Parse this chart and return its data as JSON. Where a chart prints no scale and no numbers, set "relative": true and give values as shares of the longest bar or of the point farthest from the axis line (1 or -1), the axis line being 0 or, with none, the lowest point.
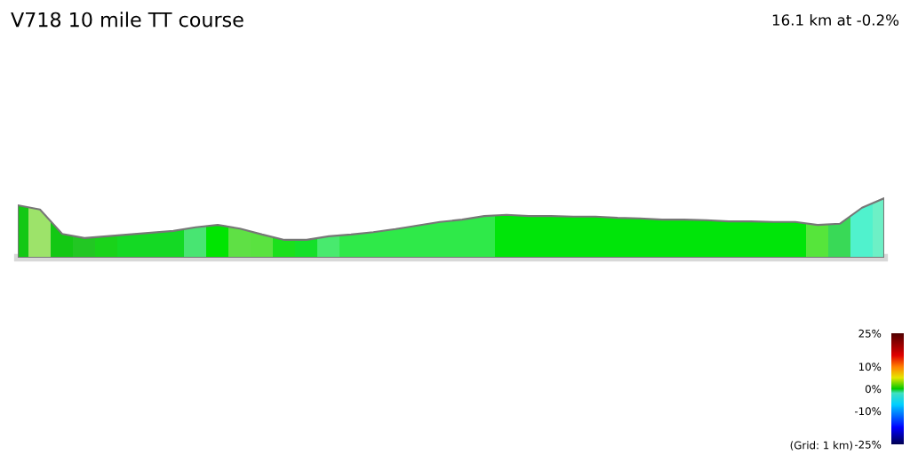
{
  "chart_data": {
    "type": "area",
    "title": "V718 10 mile TT course",
    "relative": true,
    "annotations": [
      "16.1 km at -0.2%",
      "(Grid: 1 km)"
    ],
    "categories": [
      null,
      null,
      null,
      null,
      null,
      null,
      null,
      null,
      null,
      null,
      null,
      null,
      null,
      null,
      null,
      null,
      null,
      null,
      null,
      null,
      null,
      null,
      null,
      null,
      null,
      null,
      null,
      null,
      null,
      null,
      null,
      null,
      null,
      null,
      null,
      null,
      null,
      null,
      null,
      null
    ],
    "series": [
      {
        "color": "#00e60a",
        "values": [
          0.88,
          0.81,
          0.4,
          0.33,
          0.36,
          0.39,
          0.42,
          0.45,
          0.51,
          0.55,
          0.49,
          0.39,
          0.3,
          0.3,
          0.36,
          0.39,
          0.43,
          0.48,
          0.54,
          0.6,
          0.64,
          0.7,
          0.72,
          0.7,
          0.7,
          0.69,
          0.69,
          0.67,
          0.66,
          0.64,
          0.64,
          0.63,
          0.61,
          0.61,
          0.6,
          0.6,
          0.55,
          0.57,
          0.84,
          1
        ],
        "colors": [
          "#17c417",
          "#b9e37c",
          "#17c417",
          "#29c229",
          "#1ed11e",
          "#18d82a",
          "#18d82a",
          "#18d82a",
          "#55e585",
          "#00e600",
          "#70e050",
          "#6ae24a",
          "#20e020",
          "#18e030",
          "#55ec80",
          "#38ea55",
          "#38ea55",
          "#38ea55",
          "#38ea55",
          "#38ea55",
          "#38ea55",
          "#38ea55",
          "#00e60a",
          "#00e60a",
          "#00e60a",
          "#00e60a",
          "#00e60a",
          "#00e60a",
          "#00e60a",
          "#00e60a",
          "#00e60a",
          "#00e60a",
          "#00e60a",
          "#00e60a",
          "#00e60a",
          "#00e60a",
          "#66e645",
          "#44d866",
          "#5ff5f0",
          "#80f2e8"
        ]
      }
    ],
    "clim": [
      -25,
      25
    ],
    "cticks": [
      {
        "value": 25,
        "label": "25%"
      },
      {
        "value": 10,
        "label": "10%"
      },
      {
        "value": 0,
        "label": "0%"
      },
      {
        "value": -10,
        "label": "-10%"
      },
      {
        "value": -25,
        "label": "-25%"
      }
    ]
  }
}
